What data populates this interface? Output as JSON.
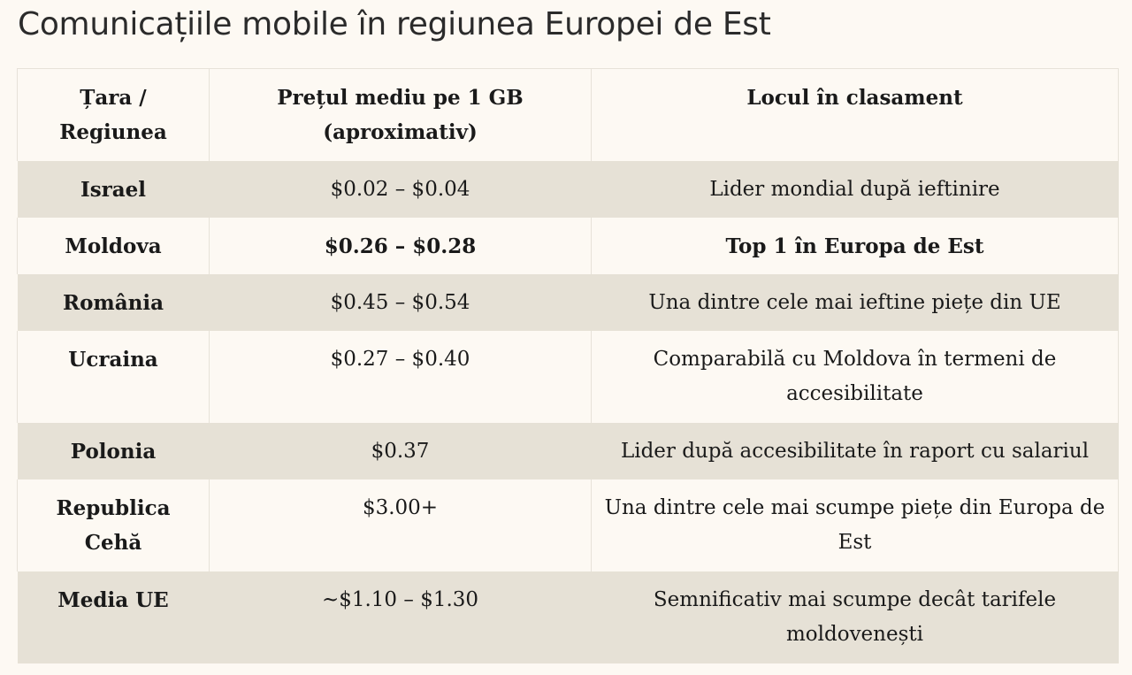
{
  "page": {
    "title": "Comunicațiile mobile în regiunea Europei de Est"
  },
  "table": {
    "headers": {
      "country": "Țara / Regiunea",
      "price": "Prețul mediu pe 1 GB (aproximativ)",
      "rank": "Locul în clasament"
    },
    "rows": [
      {
        "country": "Israel",
        "price": "$0.02 – $0.04",
        "rank": "Lider mondial după ieftinire"
      },
      {
        "country": "Moldova",
        "price": "$0.26 – $0.28",
        "rank": "Top 1 în Europa de Est"
      },
      {
        "country": "România",
        "price": "$0.45 – $0.54",
        "rank": "Una dintre cele mai ieftine piețe din UE"
      },
      {
        "country": "Ucraina",
        "price": "$0.27 – $0.40",
        "rank": "Comparabilă cu Moldova în termeni de accesibilitate"
      },
      {
        "country": "Polonia",
        "price": "$0.37",
        "rank": "Lider după accesibilitate în raport cu salariul"
      },
      {
        "country": "Republica Cehă",
        "price": "$3.00+",
        "rank": "Una dintre cele mai scumpe piețe din Europa de Est"
      },
      {
        "country": "Media UE",
        "price": "~$1.10 – $1.30",
        "rank": "Semnificativ mai scumpe decât tarifele moldovenești"
      }
    ]
  },
  "colors": {
    "background": "#fdf9f3",
    "row_shaded": "#e6e1d6",
    "text": "#1a1a1a",
    "title": "#2b2b2b"
  }
}
